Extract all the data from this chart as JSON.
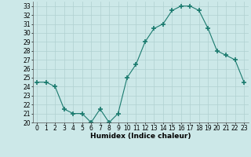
{
  "x": [
    0,
    1,
    2,
    3,
    4,
    5,
    6,
    7,
    8,
    9,
    10,
    11,
    12,
    13,
    14,
    15,
    16,
    17,
    18,
    19,
    20,
    21,
    22,
    23
  ],
  "y": [
    24.5,
    24.5,
    24.0,
    21.5,
    21.0,
    21.0,
    20.0,
    21.5,
    20.0,
    21.0,
    25.0,
    26.5,
    29.0,
    30.5,
    31.0,
    32.5,
    33.0,
    33.0,
    32.5,
    30.5,
    28.0,
    27.5,
    27.0,
    24.5
  ],
  "line_color": "#1a7a6e",
  "marker": "+",
  "marker_size": 4,
  "marker_linewidth": 1.2,
  "background_color": "#cce8e8",
  "grid_color": "#b0d0d0",
  "xlabel": "Humidex (Indice chaleur)",
  "xlim": [
    -0.5,
    23.5
  ],
  "ylim": [
    20,
    33.5
  ],
  "yticks": [
    20,
    21,
    22,
    23,
    24,
    25,
    26,
    27,
    28,
    29,
    30,
    31,
    32,
    33
  ],
  "xticks": [
    0,
    1,
    2,
    3,
    4,
    5,
    6,
    7,
    8,
    9,
    10,
    11,
    12,
    13,
    14,
    15,
    16,
    17,
    18,
    19,
    20,
    21,
    22,
    23
  ],
  "label_fontsize": 6.5,
  "tick_fontsize": 5.5
}
